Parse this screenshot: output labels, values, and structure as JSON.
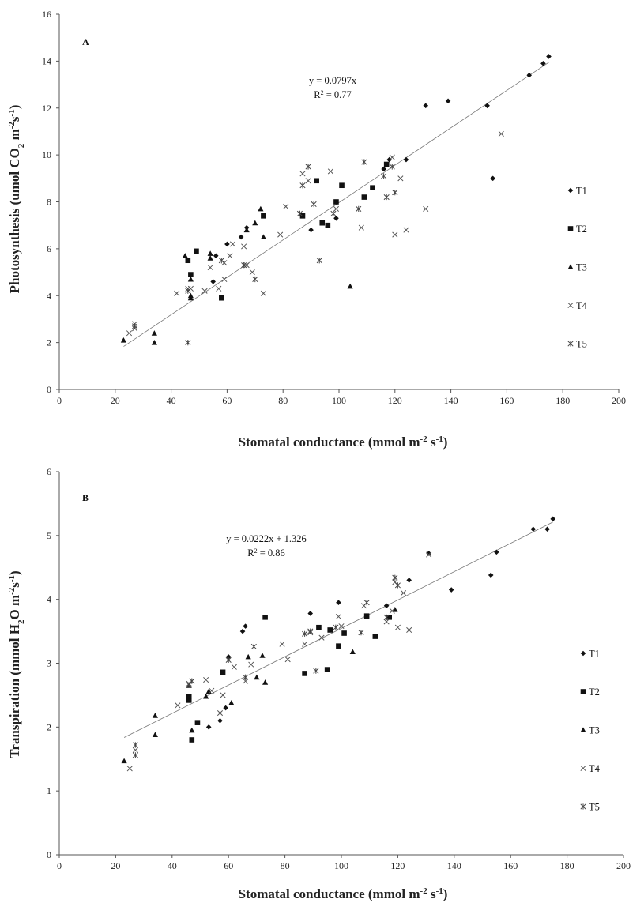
{
  "chart_data": [
    {
      "type": "scatter",
      "panel_label": "A",
      "xlabel_main": "Stomatal conductance (mmol m",
      "xlabel_sup1": "-2",
      "xlabel_mid": " s",
      "xlabel_sup2": "-1",
      "xlabel_end": ")",
      "ylabel_main": "Photosynthesis  (umol CO",
      "ylabel_sub": "2",
      "ylabel_mid": " m",
      "ylabel_sup1": "-2",
      "ylabel_mid2": "s",
      "ylabel_sup2": "-1",
      "ylabel_end": ")",
      "xlim": [
        0,
        200
      ],
      "ylim": [
        0,
        16
      ],
      "xticks": [
        "0",
        "20",
        "40",
        "60",
        "80",
        "100",
        "120",
        "140",
        "160",
        "180",
        "200"
      ],
      "yticks": [
        "0",
        "2",
        "4",
        "6",
        "8",
        "10",
        "12",
        "14",
        "16"
      ],
      "equation": "y = 0.0797x",
      "r2_main": "R",
      "r2_sup": "2",
      "r2_value": " = 0.77",
      "trendline": {
        "slope": 0.0797,
        "intercept": 0,
        "x_range": [
          23,
          175
        ]
      },
      "grid": false,
      "legend_position": "right",
      "series": [
        {
          "name": "T1",
          "marker": "diamond",
          "points": [
            [
              55,
              4.6
            ],
            [
              56,
              5.7
            ],
            [
              60,
              6.2
            ],
            [
              65,
              6.5
            ],
            [
              67,
              6.9
            ],
            [
              90,
              6.8
            ],
            [
              99,
              7.3
            ],
            [
              116,
              9.4
            ],
            [
              118,
              9.8
            ],
            [
              124,
              9.8
            ],
            [
              131,
              12.1
            ],
            [
              139,
              12.3
            ],
            [
              153,
              12.1
            ],
            [
              155,
              9.0
            ],
            [
              168,
              13.4
            ],
            [
              173,
              13.9
            ],
            [
              175,
              14.2
            ]
          ]
        },
        {
          "name": "T2",
          "marker": "square",
          "points": [
            [
              46,
              5.5
            ],
            [
              47,
              4.9
            ],
            [
              49,
              5.9
            ],
            [
              58,
              3.9
            ],
            [
              73,
              7.4
            ],
            [
              87,
              7.4
            ],
            [
              92,
              8.9
            ],
            [
              94,
              7.1
            ],
            [
              96,
              7.0
            ],
            [
              99,
              8.0
            ],
            [
              101,
              8.7
            ],
            [
              109,
              8.2
            ],
            [
              112,
              8.6
            ],
            [
              117,
              9.6
            ]
          ]
        },
        {
          "name": "T3",
          "marker": "triangle",
          "points": [
            [
              23,
              2.1
            ],
            [
              34,
              2.4
            ],
            [
              34,
              2.0
            ],
            [
              45,
              5.7
            ],
            [
              47,
              4.7
            ],
            [
              47,
              4.0
            ],
            [
              47,
              3.9
            ],
            [
              54,
              5.6
            ],
            [
              54,
              5.8
            ],
            [
              67,
              6.8
            ],
            [
              70,
              7.1
            ],
            [
              72,
              7.7
            ],
            [
              73,
              6.5
            ],
            [
              104,
              4.4
            ]
          ]
        },
        {
          "name": "T4",
          "marker": "x",
          "points": [
            [
              25,
              2.4
            ],
            [
              27,
              2.6
            ],
            [
              27,
              2.8
            ],
            [
              42,
              4.1
            ],
            [
              46,
              4.3
            ],
            [
              47,
              4.3
            ],
            [
              52,
              4.2
            ],
            [
              54,
              5.2
            ],
            [
              57,
              4.3
            ],
            [
              59,
              5.4
            ],
            [
              59,
              4.7
            ],
            [
              61,
              5.7
            ],
            [
              62,
              6.2
            ],
            [
              66,
              6.1
            ],
            [
              67,
              5.3
            ],
            [
              69,
              5.0
            ],
            [
              73,
              4.1
            ],
            [
              79,
              6.6
            ],
            [
              81,
              7.8
            ],
            [
              87,
              9.2
            ],
            [
              89,
              8.9
            ],
            [
              97,
              9.3
            ],
            [
              99,
              7.7
            ],
            [
              108,
              6.9
            ],
            [
              119,
              9.9
            ],
            [
              120,
              6.6
            ],
            [
              120,
              8.4
            ],
            [
              122,
              9.0
            ],
            [
              124,
              6.8
            ],
            [
              131,
              7.7
            ],
            [
              158,
              10.9
            ]
          ]
        },
        {
          "name": "T5",
          "marker": "asterisk",
          "points": [
            [
              27,
              2.7
            ],
            [
              46,
              2.0
            ],
            [
              46,
              4.2
            ],
            [
              58,
              5.5
            ],
            [
              66,
              5.3
            ],
            [
              70,
              4.7
            ],
            [
              86,
              7.5
            ],
            [
              87,
              8.7
            ],
            [
              89,
              9.5
            ],
            [
              91,
              7.9
            ],
            [
              93,
              5.5
            ],
            [
              98,
              7.5
            ],
            [
              107,
              7.7
            ],
            [
              109,
              9.7
            ],
            [
              116,
              9.1
            ],
            [
              117,
              8.2
            ],
            [
              119,
              9.5
            ],
            [
              120,
              8.4
            ]
          ]
        }
      ]
    },
    {
      "type": "scatter",
      "panel_label": "B",
      "xlabel_main": "Stomatal conductance (mmol m",
      "xlabel_sup1": "-2",
      "xlabel_mid": " s",
      "xlabel_sup2": "-1",
      "xlabel_end": ")",
      "ylabel_main": "Transpiration (mmol H",
      "ylabel_sub": "2",
      "ylabel_mid": "O m",
      "ylabel_sup1": "-2",
      "ylabel_mid2": "s",
      "ylabel_sup2": "-1",
      "ylabel_end": ")",
      "xlim": [
        0,
        200
      ],
      "ylim": [
        0,
        6
      ],
      "xticks": [
        "0",
        "20",
        "40",
        "60",
        "80",
        "100",
        "120",
        "140",
        "160",
        "180",
        "200"
      ],
      "yticks": [
        "0",
        "1",
        "2",
        "3",
        "4",
        "5",
        "6"
      ],
      "equation": "y = 0.0222x + 1.326",
      "r2_main": "R",
      "r2_sup": "2",
      "r2_value": " = 0.86",
      "trendline": {
        "slope": 0.0222,
        "intercept": 1.326,
        "x_range": [
          23,
          175
        ]
      },
      "grid": false,
      "legend_position": "right",
      "series": [
        {
          "name": "T1",
          "marker": "diamond",
          "points": [
            [
              53,
              2.0
            ],
            [
              57,
              2.1
            ],
            [
              59,
              2.3
            ],
            [
              60,
              3.1
            ],
            [
              65,
              3.5
            ],
            [
              66,
              3.58
            ],
            [
              89,
              3.78
            ],
            [
              99,
              3.95
            ],
            [
              116,
              3.9
            ],
            [
              124,
              4.3
            ],
            [
              131,
              4.72
            ],
            [
              139,
              4.15
            ],
            [
              153,
              4.38
            ],
            [
              155,
              4.74
            ],
            [
              168,
              5.1
            ],
            [
              173,
              5.1
            ],
            [
              175,
              5.26
            ]
          ]
        },
        {
          "name": "T2",
          "marker": "square",
          "points": [
            [
              46,
              2.42
            ],
            [
              46,
              2.48
            ],
            [
              47,
              1.8
            ],
            [
              49,
              2.07
            ],
            [
              58,
              2.86
            ],
            [
              73,
              3.72
            ],
            [
              87,
              2.84
            ],
            [
              92,
              3.56
            ],
            [
              95,
              2.9
            ],
            [
              96,
              3.52
            ],
            [
              99,
              3.27
            ],
            [
              101,
              3.47
            ],
            [
              109,
              3.74
            ],
            [
              112,
              3.42
            ],
            [
              117,
              3.72
            ]
          ]
        },
        {
          "name": "T3",
          "marker": "triangle",
          "points": [
            [
              23,
              1.47
            ],
            [
              34,
              2.18
            ],
            [
              34,
              1.88
            ],
            [
              46,
              2.65
            ],
            [
              47,
              1.95
            ],
            [
              52,
              2.48
            ],
            [
              53,
              2.56
            ],
            [
              61,
              2.38
            ],
            [
              67,
              3.1
            ],
            [
              70,
              2.78
            ],
            [
              72,
              3.12
            ],
            [
              73,
              2.7
            ],
            [
              104,
              3.18
            ],
            [
              119,
              3.84
            ]
          ]
        },
        {
          "name": "T4",
          "marker": "x",
          "points": [
            [
              25,
              1.35
            ],
            [
              27,
              1.64
            ],
            [
              42,
              2.34
            ],
            [
              46,
              2.68
            ],
            [
              47,
              2.72
            ],
            [
              52,
              2.74
            ],
            [
              54,
              2.57
            ],
            [
              57,
              2.22
            ],
            [
              58,
              2.5
            ],
            [
              62,
              2.94
            ],
            [
              66,
              2.72
            ],
            [
              68,
              2.98
            ],
            [
              79,
              3.3
            ],
            [
              81,
              3.06
            ],
            [
              87,
              3.3
            ],
            [
              89,
              3.48
            ],
            [
              93,
              3.4
            ],
            [
              99,
              3.73
            ],
            [
              100,
              3.58
            ],
            [
              108,
              3.9
            ],
            [
              116,
              3.65
            ],
            [
              118,
              3.82
            ],
            [
              120,
              3.56
            ],
            [
              122,
              4.1
            ],
            [
              124,
              3.52
            ],
            [
              131,
              4.7
            ],
            [
              119,
              4.27
            ]
          ]
        },
        {
          "name": "T5",
          "marker": "asterisk",
          "points": [
            [
              27,
              1.56
            ],
            [
              27,
              1.72
            ],
            [
              46,
              2.66
            ],
            [
              47,
              2.72
            ],
            [
              60,
              3.05
            ],
            [
              66,
              2.78
            ],
            [
              69,
              3.26
            ],
            [
              87,
              3.46
            ],
            [
              89,
              3.5
            ],
            [
              91,
              2.88
            ],
            [
              98,
              3.56
            ],
            [
              107,
              3.48
            ],
            [
              109,
              3.95
            ],
            [
              116,
              3.72
            ],
            [
              119,
              4.34
            ],
            [
              120,
              4.22
            ]
          ]
        }
      ]
    }
  ]
}
